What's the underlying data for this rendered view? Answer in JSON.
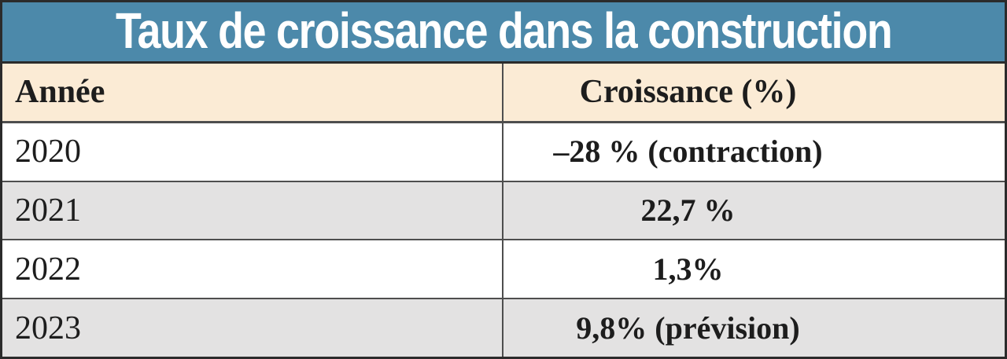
{
  "title": "Taux de croissance dans la construction",
  "table": {
    "columns": {
      "year_label": "Année",
      "growth_label": "Croissance (%)"
    },
    "rows": [
      {
        "year": "2020",
        "growth": "–28 % (contraction)"
      },
      {
        "year": "2021",
        "growth": "22,7 %"
      },
      {
        "year": "2022",
        "growth": "1,3%"
      },
      {
        "year": "2023",
        "growth": "9,8% (prévision)"
      }
    ]
  },
  "chart_data": {
    "type": "table",
    "title": "Taux de croissance dans la construction",
    "columns": [
      "Année",
      "Croissance (%)"
    ],
    "rows": [
      [
        "2020",
        "–28 % (contraction)"
      ],
      [
        "2021",
        "22,7 %"
      ],
      [
        "2022",
        "1,3%"
      ],
      [
        "2023",
        "9,8% (prévision)"
      ]
    ],
    "series": [
      {
        "name": "Croissance (%)",
        "x": [
          2020,
          2021,
          2022,
          2023
        ],
        "values": [
          -28,
          22.7,
          1.3,
          9.8
        ]
      }
    ],
    "notes": {
      "2020": "contraction",
      "2023": "prévision"
    }
  },
  "colors": {
    "c-blue": "#4C89AA",
    "c-cream": "#FBEBD5",
    "c-gray": "#E3E2E2",
    "c-white": "#FFFFFF",
    "c-border": "#2B2B2B",
    "c-grid": "#4E4E4E",
    "c-text": "#1D1D1D",
    "c-title-text": "#FFFFFF"
  }
}
